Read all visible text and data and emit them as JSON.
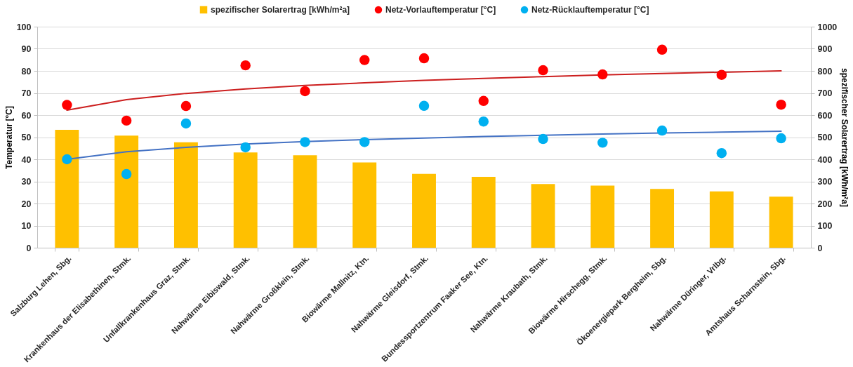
{
  "chart_data": {
    "type": "bar",
    "categories": [
      "Salzburg Lehen, Sbg.",
      "Krankenhaus der Elisabethinen, Stmk.",
      "Unfallkrankenhaus Graz, Stmk.",
      "Nahwärme Eibiswald, Stmk.",
      "Nahwärme Großklein, Stmk.",
      "Biowärme Mallnitz, Ktn.",
      "Nahwärme Gleisdorf, Stmk.",
      "Bundessportzentrum Faaker See, Ktn.",
      "Nahwärme Kraubath, Stmk.",
      "Biowärme Hirschegg, Stmk.",
      "Ökoenergiepark Bergheim, Sbg.",
      "Nahwärme Düringer, Vrlbg.",
      "Amtshaus Scharnstein, Sbg."
    ],
    "series": [
      {
        "name": "spezifischer Solarertrag [kWh/m²a]",
        "axis": "y2",
        "color": "#ffc000",
        "values": [
          533,
          507,
          477,
          431,
          418,
          386,
          334,
          321,
          288,
          281,
          266,
          255,
          231
        ]
      },
      {
        "name": "Netz-Vorlauftemperatur [°C]",
        "type": "scatter",
        "marker": "circle",
        "color": "#ff0000",
        "values": [
          64.6,
          57.5,
          64.1,
          82.5,
          70.8,
          84.9,
          85.7,
          66.4,
          80.3,
          78.4,
          89.6,
          78.2,
          64.7
        ]
      },
      {
        "name": "Netz-Rücklauftemperatur [°C]",
        "type": "scatter",
        "marker": "circle",
        "color": "#00b0f0",
        "values": [
          40,
          33.3,
          56.2,
          45.4,
          47.8,
          47.8,
          64.2,
          57.1,
          49.2,
          47.5,
          53,
          42.8,
          49.5
        ]
      },
      {
        "type": "line",
        "marker": "none",
        "color": "#cc1f1f",
        "values": [
          62.2,
          67.0,
          69.8,
          71.8,
          73.4,
          74.6,
          75.7,
          76.6,
          77.4,
          78.2,
          78.8,
          79.4,
          80.0
        ]
      },
      {
        "type": "line",
        "marker": "none",
        "color": "#4472c4",
        "values": [
          40.0,
          43.4,
          45.4,
          46.9,
          48.0,
          48.9,
          49.6,
          50.3,
          50.9,
          51.4,
          51.9,
          52.3,
          52.7
        ]
      }
    ],
    "ylabel": "Temperatur [°C]",
    "y2label": "spezifischer Solarertrag [kWh/m²a]",
    "ylim": [
      0,
      100
    ],
    "yticks": [
      0,
      10,
      20,
      30,
      40,
      50,
      60,
      70,
      80,
      90,
      100
    ],
    "y2lim": [
      0,
      1000
    ],
    "y2ticks": [
      0,
      100,
      200,
      300,
      400,
      500,
      600,
      700,
      800,
      900,
      1000
    ],
    "grid": "y",
    "legend": "top"
  }
}
